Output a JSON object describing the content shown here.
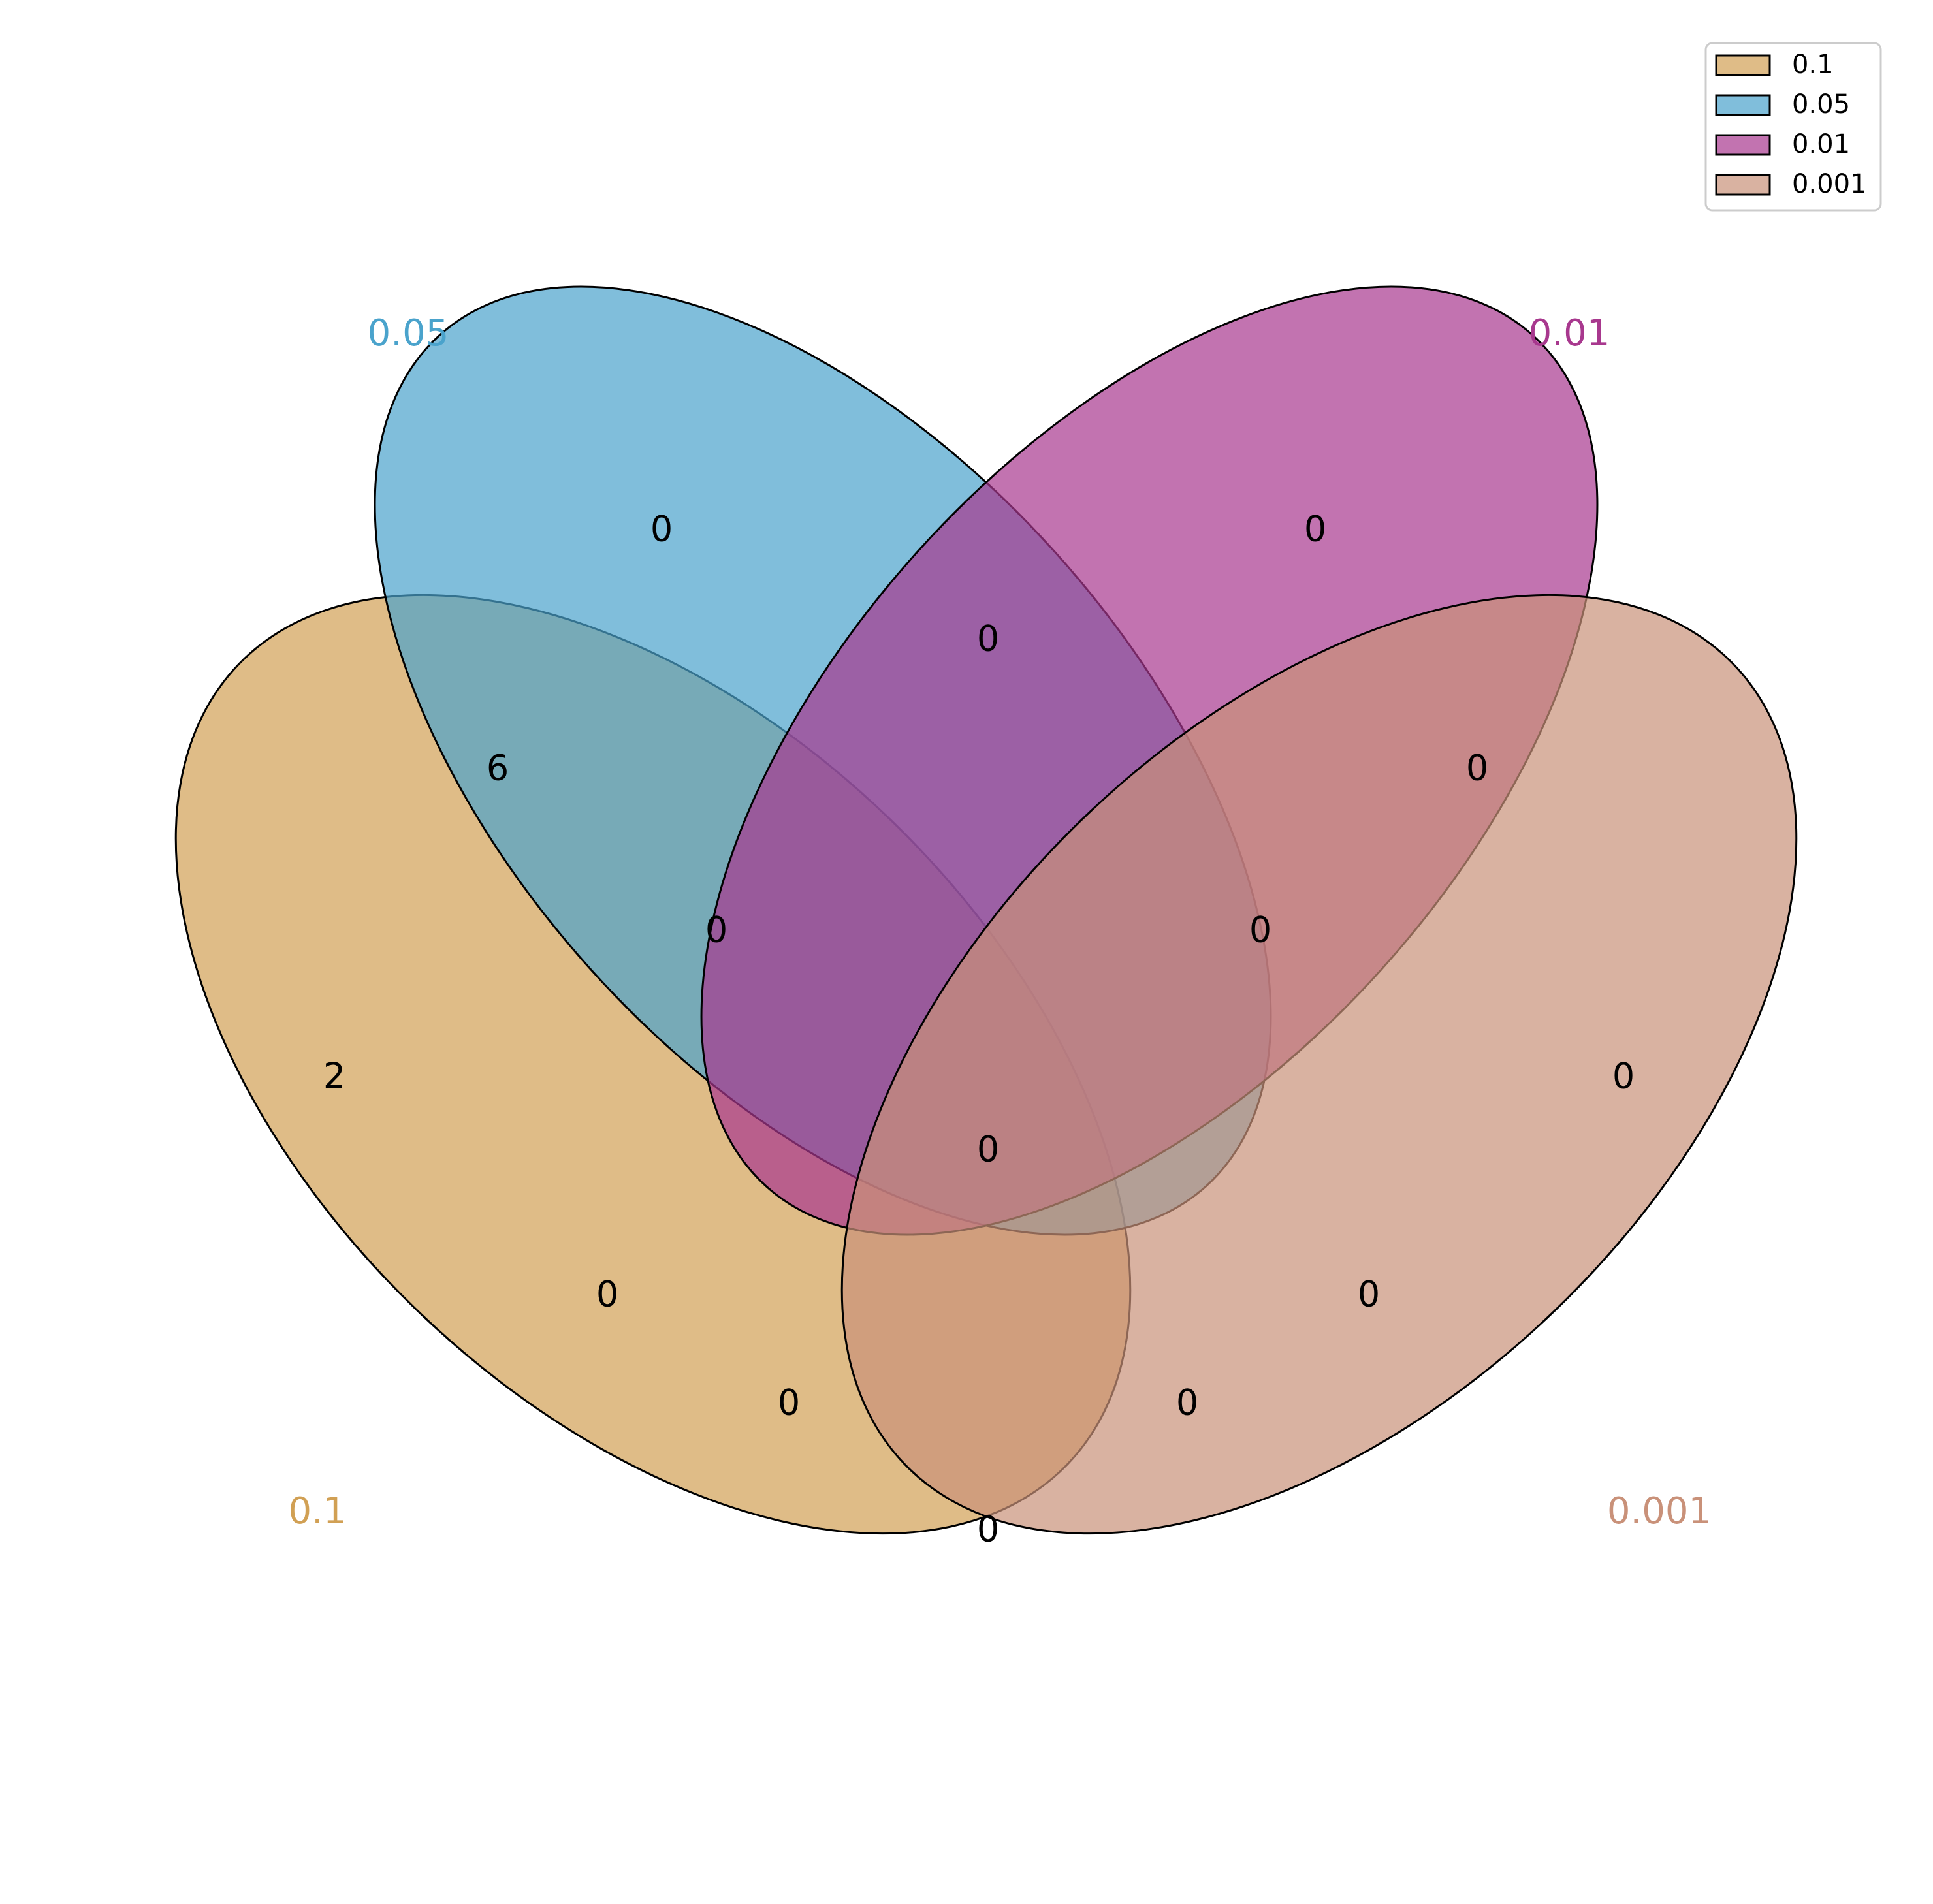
{
  "sets": [
    {
      "name": "0.1",
      "color": "#D1A054"
    },
    {
      "name": "0.05",
      "color": "#4AA3CC"
    },
    {
      "name": "0.01",
      "color": "#A8388E"
    },
    {
      "name": "0.001",
      "color": "#C99179"
    }
  ],
  "regions": {
    "only_0_05": "0",
    "only_0_01": "0",
    "r_0_05_0_01": "0",
    "r_0_1_0_05": "6",
    "r_0_01_0_001": "0",
    "r_0_1_0_05_0_01": "0",
    "r_0_05_0_01_0_001": "0",
    "only_0_1": "2",
    "only_0_001": "0",
    "all_four": "0",
    "r_0_1_0_01": "0",
    "r_0_05_0_001": "0",
    "r_0_1_0_01_0_001": "0",
    "r_0_1_0_05_0_001": "0",
    "r_0_1_0_001": "0"
  },
  "legend": {
    "placement": "top-right",
    "items": [
      "0.1",
      "0.05",
      "0.01",
      "0.001"
    ]
  }
}
